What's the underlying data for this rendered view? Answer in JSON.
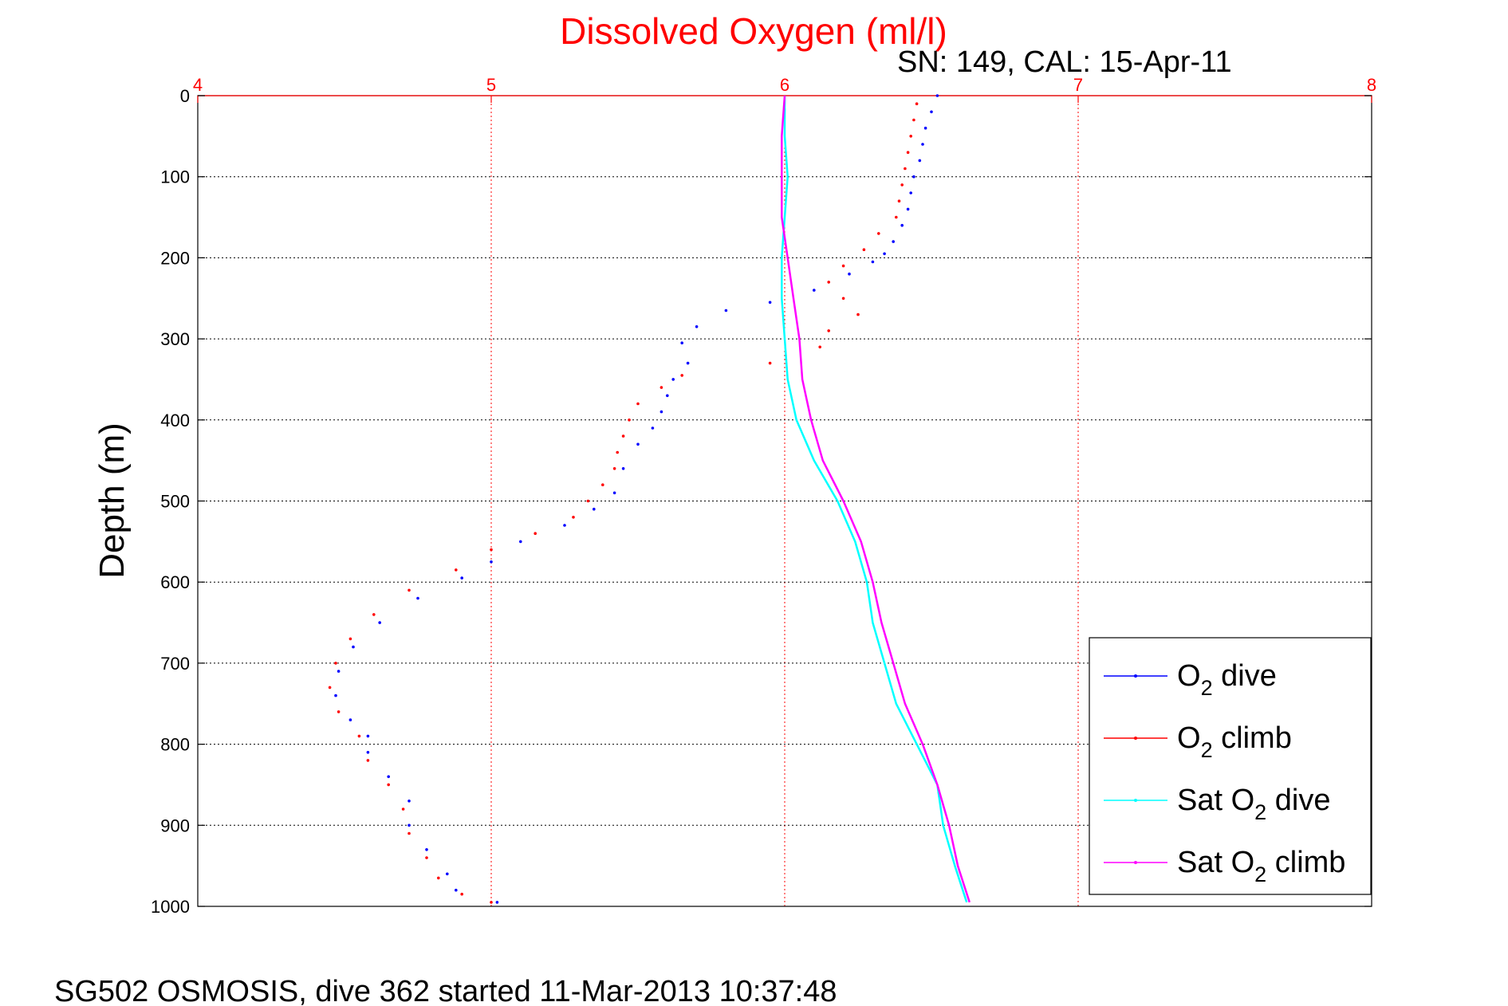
{
  "chart_data": {
    "type": "scatter",
    "title": "Dissolved Oxygen (ml/l)",
    "subtitle": "SN: 149, CAL: 15-Apr-11",
    "ylabel": "Depth (m)",
    "footer": "SG502 OSMOSIS, dive 362 started 11-Mar-2013 10:37:48",
    "xlim": [
      4,
      8
    ],
    "ylim": [
      0,
      1000
    ],
    "y_reversed": true,
    "x_axis_position": "top",
    "x_ticks": [
      "4",
      "5",
      "6",
      "7",
      "8"
    ],
    "y_ticks": [
      "0",
      "100",
      "200",
      "300",
      "400",
      "500",
      "600",
      "700",
      "800",
      "900",
      "1000"
    ],
    "grid": true,
    "legend_position": "bottom-right",
    "series": [
      {
        "name": "O2 dive",
        "legend_main": "O",
        "legend_sub": "2",
        "legend_rest": " dive",
        "color": "#0000ff",
        "style": "dots",
        "points": [
          [
            6.52,
            0
          ],
          [
            6.5,
            20
          ],
          [
            6.48,
            40
          ],
          [
            6.47,
            60
          ],
          [
            6.46,
            80
          ],
          [
            6.44,
            100
          ],
          [
            6.43,
            120
          ],
          [
            6.42,
            140
          ],
          [
            6.4,
            160
          ],
          [
            6.37,
            180
          ],
          [
            6.34,
            195
          ],
          [
            6.3,
            205
          ],
          [
            6.22,
            220
          ],
          [
            6.1,
            240
          ],
          [
            5.95,
            255
          ],
          [
            5.8,
            265
          ],
          [
            5.7,
            285
          ],
          [
            5.65,
            305
          ],
          [
            5.67,
            330
          ],
          [
            5.62,
            350
          ],
          [
            5.6,
            370
          ],
          [
            5.58,
            390
          ],
          [
            5.55,
            410
          ],
          [
            5.5,
            430
          ],
          [
            5.45,
            460
          ],
          [
            5.42,
            490
          ],
          [
            5.35,
            510
          ],
          [
            5.25,
            530
          ],
          [
            5.1,
            550
          ],
          [
            5.0,
            575
          ],
          [
            4.9,
            595
          ],
          [
            4.75,
            620
          ],
          [
            4.62,
            650
          ],
          [
            4.53,
            680
          ],
          [
            4.48,
            710
          ],
          [
            4.47,
            740
          ],
          [
            4.52,
            770
          ],
          [
            4.58,
            790
          ],
          [
            4.58,
            810
          ],
          [
            4.65,
            840
          ],
          [
            4.72,
            870
          ],
          [
            4.72,
            900
          ],
          [
            4.78,
            930
          ],
          [
            4.85,
            960
          ],
          [
            4.88,
            980
          ],
          [
            5.02,
            995
          ]
        ]
      },
      {
        "name": "O2 climb",
        "legend_main": "O",
        "legend_sub": "2",
        "legend_rest": " climb",
        "color": "#ff0000",
        "style": "dots",
        "points": [
          [
            6.45,
            10
          ],
          [
            6.44,
            30
          ],
          [
            6.43,
            50
          ],
          [
            6.42,
            70
          ],
          [
            6.41,
            90
          ],
          [
            6.4,
            110
          ],
          [
            6.39,
            130
          ],
          [
            6.38,
            150
          ],
          [
            6.32,
            170
          ],
          [
            6.27,
            190
          ],
          [
            6.2,
            210
          ],
          [
            6.15,
            230
          ],
          [
            6.2,
            250
          ],
          [
            6.25,
            270
          ],
          [
            6.15,
            290
          ],
          [
            6.12,
            310
          ],
          [
            5.95,
            330
          ],
          [
            5.65,
            345
          ],
          [
            5.58,
            360
          ],
          [
            5.5,
            380
          ],
          [
            5.47,
            400
          ],
          [
            5.45,
            420
          ],
          [
            5.43,
            440
          ],
          [
            5.42,
            460
          ],
          [
            5.38,
            480
          ],
          [
            5.33,
            500
          ],
          [
            5.28,
            520
          ],
          [
            5.15,
            540
          ],
          [
            5.0,
            560
          ],
          [
            4.88,
            585
          ],
          [
            4.72,
            610
          ],
          [
            4.6,
            640
          ],
          [
            4.52,
            670
          ],
          [
            4.47,
            700
          ],
          [
            4.45,
            730
          ],
          [
            4.48,
            760
          ],
          [
            4.55,
            790
          ],
          [
            4.58,
            820
          ],
          [
            4.65,
            850
          ],
          [
            4.7,
            880
          ],
          [
            4.72,
            910
          ],
          [
            4.78,
            940
          ],
          [
            4.82,
            965
          ],
          [
            4.9,
            985
          ],
          [
            5.0,
            995
          ]
        ]
      },
      {
        "name": "Sat O2 dive",
        "legend_main": "Sat O",
        "legend_sub": "2",
        "legend_rest": " dive",
        "color": "#00ffff",
        "style": "line",
        "points": [
          [
            6.0,
            0
          ],
          [
            6.0,
            50
          ],
          [
            6.01,
            100
          ],
          [
            6.0,
            150
          ],
          [
            5.99,
            200
          ],
          [
            5.99,
            250
          ],
          [
            6.0,
            300
          ],
          [
            6.01,
            350
          ],
          [
            6.04,
            400
          ],
          [
            6.1,
            450
          ],
          [
            6.18,
            500
          ],
          [
            6.24,
            550
          ],
          [
            6.28,
            600
          ],
          [
            6.3,
            650
          ],
          [
            6.34,
            700
          ],
          [
            6.38,
            750
          ],
          [
            6.45,
            800
          ],
          [
            6.52,
            850
          ],
          [
            6.54,
            900
          ],
          [
            6.58,
            950
          ],
          [
            6.62,
            995
          ]
        ]
      },
      {
        "name": "Sat O2 climb",
        "legend_main": "Sat O",
        "legend_sub": "2",
        "legend_rest": " climb",
        "color": "#ff00ff",
        "style": "line",
        "points": [
          [
            6.0,
            0
          ],
          [
            5.99,
            50
          ],
          [
            5.99,
            100
          ],
          [
            5.99,
            150
          ],
          [
            6.01,
            200
          ],
          [
            6.03,
            250
          ],
          [
            6.05,
            300
          ],
          [
            6.06,
            350
          ],
          [
            6.09,
            400
          ],
          [
            6.13,
            450
          ],
          [
            6.2,
            500
          ],
          [
            6.26,
            550
          ],
          [
            6.3,
            600
          ],
          [
            6.33,
            650
          ],
          [
            6.37,
            700
          ],
          [
            6.41,
            750
          ],
          [
            6.47,
            800
          ],
          [
            6.52,
            850
          ],
          [
            6.56,
            900
          ],
          [
            6.59,
            950
          ],
          [
            6.63,
            995
          ]
        ]
      }
    ]
  }
}
